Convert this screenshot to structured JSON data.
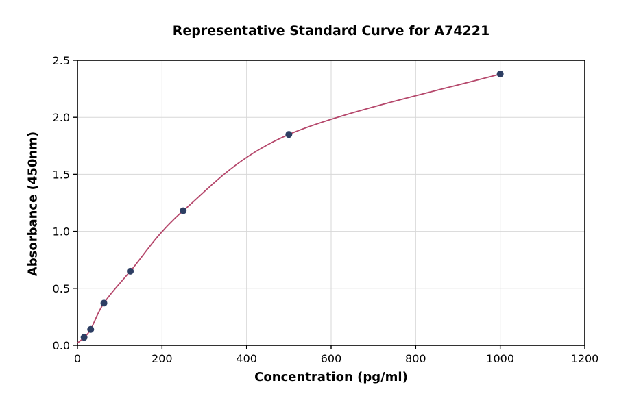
{
  "title": "Representative Standard Curve for A74221",
  "chart_data": {
    "type": "scatter",
    "title": "Representative Standard Curve for A74221",
    "xlabel": "Concentration (pg/ml)",
    "ylabel": "Absorbance (450nm)",
    "xlim": [
      0,
      1200
    ],
    "ylim": [
      0,
      2.5
    ],
    "x_ticks": [
      0,
      200,
      400,
      600,
      800,
      1000,
      1200
    ],
    "x_tick_labels": [
      "0",
      "200",
      "400",
      "600",
      "800",
      "1000",
      "1200"
    ],
    "y_ticks": [
      0,
      0.5,
      1.0,
      1.5,
      2.0,
      2.5
    ],
    "y_tick_labels": [
      "0.0",
      "0.5",
      "1.0",
      "1.5",
      "2.0",
      "2.5"
    ],
    "grid": true,
    "legend": "none",
    "curve_start": {
      "x": 0,
      "y": 0.02
    },
    "points": [
      {
        "x": 15.6,
        "y": 0.07
      },
      {
        "x": 31.25,
        "y": 0.14
      },
      {
        "x": 62.5,
        "y": 0.37
      },
      {
        "x": 125,
        "y": 0.65
      },
      {
        "x": 250,
        "y": 1.18
      },
      {
        "x": 500,
        "y": 1.85
      },
      {
        "x": 1000,
        "y": 2.38
      }
    ],
    "colors": {
      "curve": "#b5476b",
      "points": "#2d3e63",
      "grid": "#d7d7d7",
      "axis": "#000000",
      "tick_text": "#000000"
    }
  }
}
